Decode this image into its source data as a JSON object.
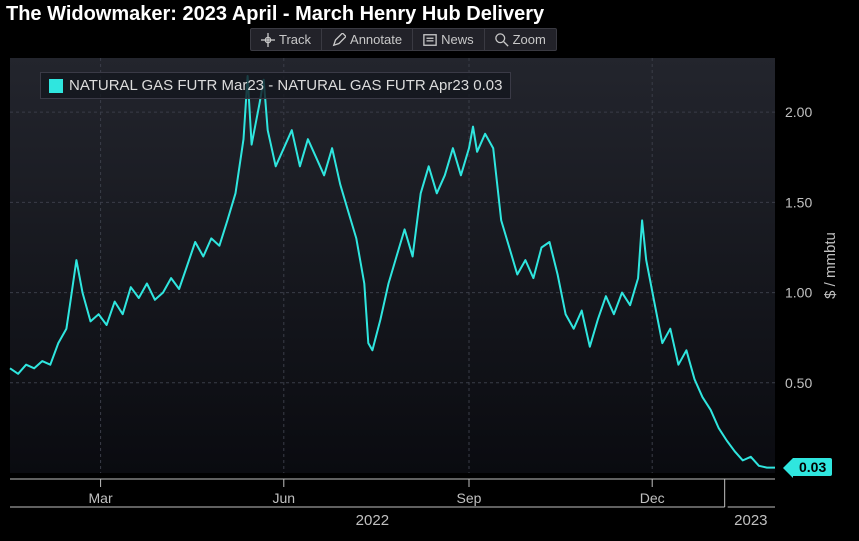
{
  "title": "The Widowmaker: 2023 April - March Henry Hub Delivery",
  "toolbar": {
    "track": "Track",
    "annotate": "Annotate",
    "news": "News",
    "zoom": "Zoom"
  },
  "legend": {
    "label": "NATURAL GAS FUTR Mar23 - NATURAL GAS FUTR Apr23 0.03",
    "swatch_color": "#2fe6df"
  },
  "chart": {
    "type": "line",
    "background_gradient_top": "#23252d",
    "background_gradient_bottom": "#0a0b10",
    "outer_background": "#000000",
    "grid_color": "#3a3d48",
    "axis_text_color": "#c0c0c0",
    "series_color": "#2fe6df",
    "series_width": 2,
    "ylabel": "$ / mmbtu",
    "ylim": [
      0,
      2.3
    ],
    "yticks": [
      0.5,
      1.0,
      1.5,
      2.0
    ],
    "ytick_labels": [
      "0.50",
      "1.00",
      "1.50",
      "2.00"
    ],
    "x_range_days": [
      0,
      380
    ],
    "xticks_days": [
      45,
      136,
      228,
      319
    ],
    "xtick_labels": [
      "Mar",
      "Jun",
      "Sep",
      "Dec"
    ],
    "year_markers": [
      {
        "day": 180,
        "label": "2022"
      },
      {
        "day": 368,
        "label": "2023"
      }
    ],
    "last_value_marker": {
      "value": 0.03,
      "label": "0.03",
      "bg_color": "#2fe6df",
      "text_color": "#000000"
    },
    "series": [
      [
        0,
        0.58
      ],
      [
        4,
        0.55
      ],
      [
        8,
        0.6
      ],
      [
        12,
        0.58
      ],
      [
        16,
        0.62
      ],
      [
        20,
        0.6
      ],
      [
        24,
        0.72
      ],
      [
        28,
        0.8
      ],
      [
        30,
        0.95
      ],
      [
        33,
        1.18
      ],
      [
        36,
        1.0
      ],
      [
        40,
        0.84
      ],
      [
        44,
        0.88
      ],
      [
        48,
        0.82
      ],
      [
        52,
        0.95
      ],
      [
        56,
        0.88
      ],
      [
        60,
        1.03
      ],
      [
        64,
        0.97
      ],
      [
        68,
        1.05
      ],
      [
        72,
        0.96
      ],
      [
        76,
        1.0
      ],
      [
        80,
        1.08
      ],
      [
        84,
        1.02
      ],
      [
        88,
        1.15
      ],
      [
        92,
        1.28
      ],
      [
        96,
        1.2
      ],
      [
        100,
        1.3
      ],
      [
        104,
        1.26
      ],
      [
        108,
        1.4
      ],
      [
        112,
        1.55
      ],
      [
        116,
        1.85
      ],
      [
        118,
        2.2
      ],
      [
        120,
        1.82
      ],
      [
        124,
        2.05
      ],
      [
        126,
        2.18
      ],
      [
        128,
        1.9
      ],
      [
        132,
        1.7
      ],
      [
        136,
        1.8
      ],
      [
        140,
        1.9
      ],
      [
        144,
        1.7
      ],
      [
        148,
        1.85
      ],
      [
        152,
        1.75
      ],
      [
        156,
        1.65
      ],
      [
        160,
        1.8
      ],
      [
        164,
        1.6
      ],
      [
        168,
        1.45
      ],
      [
        172,
        1.3
      ],
      [
        176,
        1.05
      ],
      [
        178,
        0.72
      ],
      [
        180,
        0.68
      ],
      [
        184,
        0.85
      ],
      [
        188,
        1.05
      ],
      [
        192,
        1.2
      ],
      [
        196,
        1.35
      ],
      [
        200,
        1.2
      ],
      [
        204,
        1.55
      ],
      [
        208,
        1.7
      ],
      [
        212,
        1.55
      ],
      [
        216,
        1.65
      ],
      [
        220,
        1.8
      ],
      [
        224,
        1.65
      ],
      [
        228,
        1.8
      ],
      [
        230,
        1.92
      ],
      [
        232,
        1.78
      ],
      [
        236,
        1.88
      ],
      [
        240,
        1.8
      ],
      [
        244,
        1.4
      ],
      [
        248,
        1.25
      ],
      [
        252,
        1.1
      ],
      [
        256,
        1.18
      ],
      [
        260,
        1.08
      ],
      [
        264,
        1.25
      ],
      [
        268,
        1.28
      ],
      [
        272,
        1.1
      ],
      [
        276,
        0.88
      ],
      [
        280,
        0.8
      ],
      [
        284,
        0.9
      ],
      [
        288,
        0.7
      ],
      [
        292,
        0.85
      ],
      [
        296,
        0.98
      ],
      [
        300,
        0.88
      ],
      [
        304,
        1.0
      ],
      [
        308,
        0.93
      ],
      [
        312,
        1.08
      ],
      [
        314,
        1.4
      ],
      [
        316,
        1.18
      ],
      [
        320,
        0.95
      ],
      [
        324,
        0.72
      ],
      [
        328,
        0.8
      ],
      [
        332,
        0.6
      ],
      [
        336,
        0.68
      ],
      [
        340,
        0.52
      ],
      [
        344,
        0.42
      ],
      [
        348,
        0.35
      ],
      [
        352,
        0.25
      ],
      [
        356,
        0.18
      ],
      [
        360,
        0.12
      ],
      [
        364,
        0.07
      ],
      [
        368,
        0.09
      ],
      [
        372,
        0.04
      ],
      [
        376,
        0.03
      ],
      [
        380,
        0.03
      ]
    ]
  }
}
